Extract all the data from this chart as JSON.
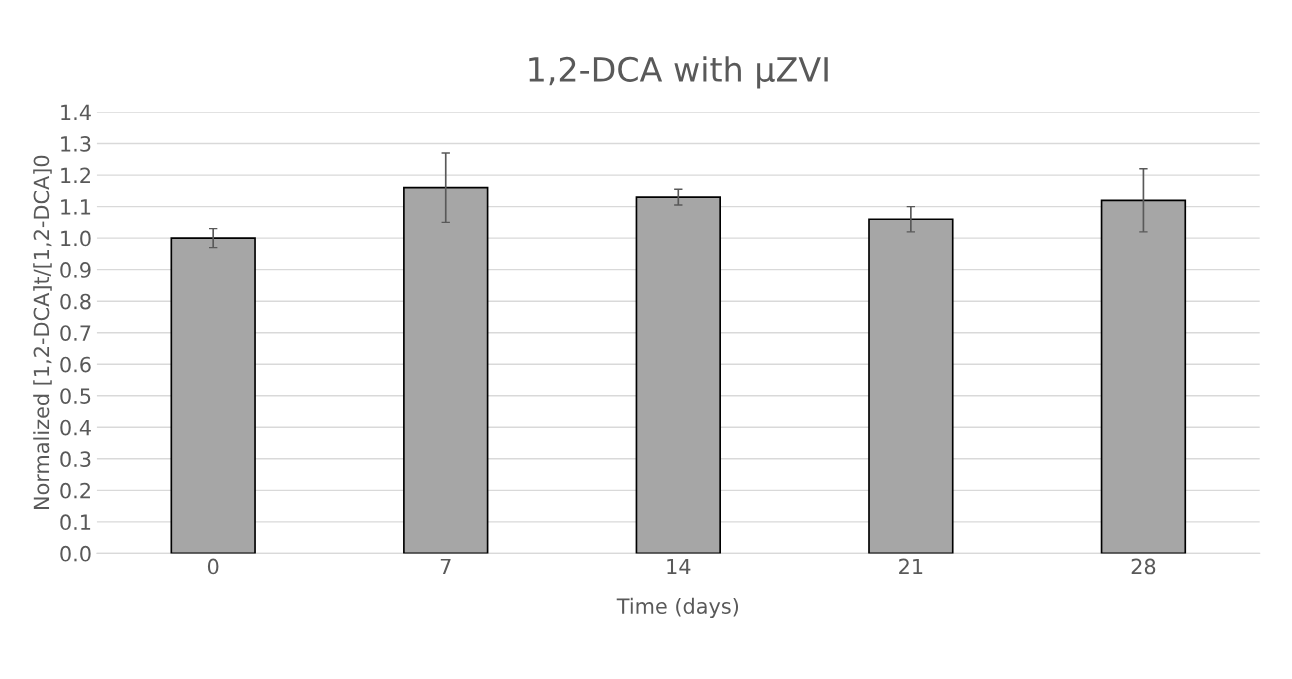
{
  "chart_data": {
    "type": "bar",
    "title": "1,2-DCA with µZVI",
    "xlabel": "Time (days)",
    "ylabel": "Normalized [1,2-DCA]t/[1,2-DCA]0",
    "categories": [
      "0",
      "7",
      "14",
      "21",
      "28"
    ],
    "values": [
      1.0,
      1.16,
      1.13,
      1.06,
      1.12
    ],
    "errors": [
      0.03,
      0.11,
      0.025,
      0.04,
      0.1
    ],
    "color": "#a6a6a6",
    "ylim": [
      0,
      1.4
    ],
    "yticks": [
      {
        "value": 0,
        "label": "0.0"
      },
      {
        "value": 0.1,
        "label": "0.1"
      },
      {
        "value": 0.2,
        "label": "0.2"
      },
      {
        "value": 0.3,
        "label": "0.3"
      },
      {
        "value": 0.4,
        "label": "0.4"
      },
      {
        "value": 0.5,
        "label": "0.5"
      },
      {
        "value": 0.6,
        "label": "0.6"
      },
      {
        "value": 0.7,
        "label": "0.7"
      },
      {
        "value": 0.8,
        "label": "0.8"
      },
      {
        "value": 0.9,
        "label": "0.9"
      },
      {
        "value": 1.0,
        "label": "1.0"
      },
      {
        "value": 1.1,
        "label": "1.1"
      },
      {
        "value": 1.2,
        "label": "1.2"
      },
      {
        "value": 1.3,
        "label": "1.3"
      },
      {
        "value": 1.4,
        "label": "1.4"
      }
    ],
    "grid": "y"
  }
}
